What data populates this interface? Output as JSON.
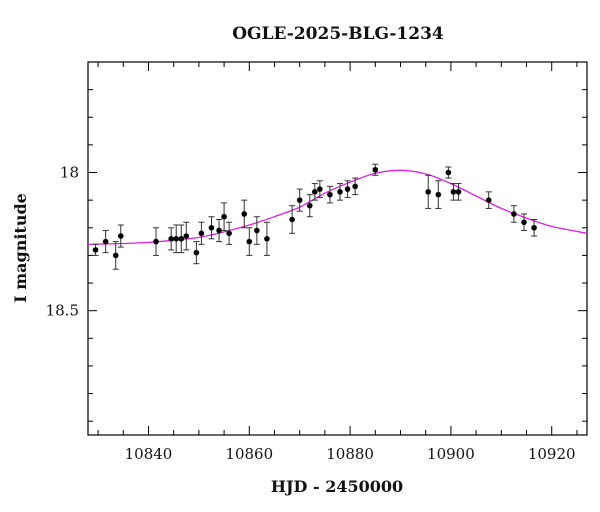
{
  "chart_data": {
    "type": "scatter",
    "title": "OGLE-2025-BLG-1234",
    "xlabel": "HJD - 2450000",
    "ylabel": "I magnitude",
    "xlim": [
      10828,
      10927
    ],
    "ylim": [
      18.95,
      17.6
    ],
    "y_inverted": true,
    "grid": false,
    "x_ticks": [
      10840,
      10860,
      10880,
      10900,
      10920
    ],
    "y_ticks": [
      18,
      18.5
    ],
    "x_tick_labels": [
      "10840",
      "10860",
      "10880",
      "10900",
      "10920"
    ],
    "y_tick_labels": [
      "18",
      "18.5"
    ],
    "colors": {
      "points": "#000000",
      "errorbars": "#333333",
      "model": "#e020e0"
    },
    "series": [
      {
        "type": "scatter",
        "points": [
          {
            "x": 10829.5,
            "y": 18.28,
            "err": 0.02
          },
          {
            "x": 10831.5,
            "y": 18.25,
            "err": 0.04
          },
          {
            "x": 10833.5,
            "y": 18.3,
            "err": 0.05
          },
          {
            "x": 10834.5,
            "y": 18.23,
            "err": 0.04
          },
          {
            "x": 10841.5,
            "y": 18.25,
            "err": 0.05
          },
          {
            "x": 10844.5,
            "y": 18.24,
            "err": 0.04
          },
          {
            "x": 10845.5,
            "y": 18.24,
            "err": 0.05
          },
          {
            "x": 10846.5,
            "y": 18.24,
            "err": 0.05
          },
          {
            "x": 10847.5,
            "y": 18.23,
            "err": 0.05
          },
          {
            "x": 10849.5,
            "y": 18.29,
            "err": 0.04
          },
          {
            "x": 10850.5,
            "y": 18.22,
            "err": 0.04
          },
          {
            "x": 10852.5,
            "y": 18.2,
            "err": 0.04
          },
          {
            "x": 10854.0,
            "y": 18.21,
            "err": 0.04
          },
          {
            "x": 10855.0,
            "y": 18.16,
            "err": 0.05
          },
          {
            "x": 10856.0,
            "y": 18.22,
            "err": 0.04
          },
          {
            "x": 10859.0,
            "y": 18.15,
            "err": 0.05
          },
          {
            "x": 10860.0,
            "y": 18.25,
            "err": 0.05
          },
          {
            "x": 10861.5,
            "y": 18.21,
            "err": 0.05
          },
          {
            "x": 10863.5,
            "y": 18.24,
            "err": 0.06
          },
          {
            "x": 10868.5,
            "y": 18.17,
            "err": 0.05
          },
          {
            "x": 10870.0,
            "y": 18.1,
            "err": 0.04
          },
          {
            "x": 10872.0,
            "y": 18.12,
            "err": 0.04
          },
          {
            "x": 10873.0,
            "y": 18.07,
            "err": 0.03
          },
          {
            "x": 10874.0,
            "y": 18.06,
            "err": 0.03
          },
          {
            "x": 10876.0,
            "y": 18.08,
            "err": 0.03
          },
          {
            "x": 10878.0,
            "y": 18.07,
            "err": 0.03
          },
          {
            "x": 10879.5,
            "y": 18.06,
            "err": 0.03
          },
          {
            "x": 10881.0,
            "y": 18.05,
            "err": 0.03
          },
          {
            "x": 10885.0,
            "y": 17.99,
            "err": 0.02
          },
          {
            "x": 10895.5,
            "y": 18.07,
            "err": 0.06
          },
          {
            "x": 10897.5,
            "y": 18.08,
            "err": 0.05
          },
          {
            "x": 10899.5,
            "y": 18.0,
            "err": 0.02
          },
          {
            "x": 10900.5,
            "y": 18.07,
            "err": 0.03
          },
          {
            "x": 10901.5,
            "y": 18.07,
            "err": 0.03
          },
          {
            "x": 10907.5,
            "y": 18.1,
            "err": 0.03
          },
          {
            "x": 10912.5,
            "y": 18.15,
            "err": 0.03
          },
          {
            "x": 10914.5,
            "y": 18.18,
            "err": 0.03
          },
          {
            "x": 10916.5,
            "y": 18.2,
            "err": 0.03
          }
        ]
      },
      {
        "type": "line",
        "points": [
          {
            "x": 10828,
            "y": 18.26
          },
          {
            "x": 10835,
            "y": 18.257
          },
          {
            "x": 10840,
            "y": 18.253
          },
          {
            "x": 10845,
            "y": 18.245
          },
          {
            "x": 10850,
            "y": 18.235
          },
          {
            "x": 10855,
            "y": 18.215
          },
          {
            "x": 10860,
            "y": 18.19
          },
          {
            "x": 10865,
            "y": 18.16
          },
          {
            "x": 10870,
            "y": 18.125
          },
          {
            "x": 10875,
            "y": 18.075
          },
          {
            "x": 10880,
            "y": 18.035
          },
          {
            "x": 10885,
            "y": 18.003
          },
          {
            "x": 10890,
            "y": 17.992
          },
          {
            "x": 10895,
            "y": 18.005
          },
          {
            "x": 10900,
            "y": 18.04
          },
          {
            "x": 10905,
            "y": 18.085
          },
          {
            "x": 10910,
            "y": 18.13
          },
          {
            "x": 10915,
            "y": 18.165
          },
          {
            "x": 10920,
            "y": 18.195
          },
          {
            "x": 10927,
            "y": 18.22
          }
        ]
      }
    ]
  }
}
